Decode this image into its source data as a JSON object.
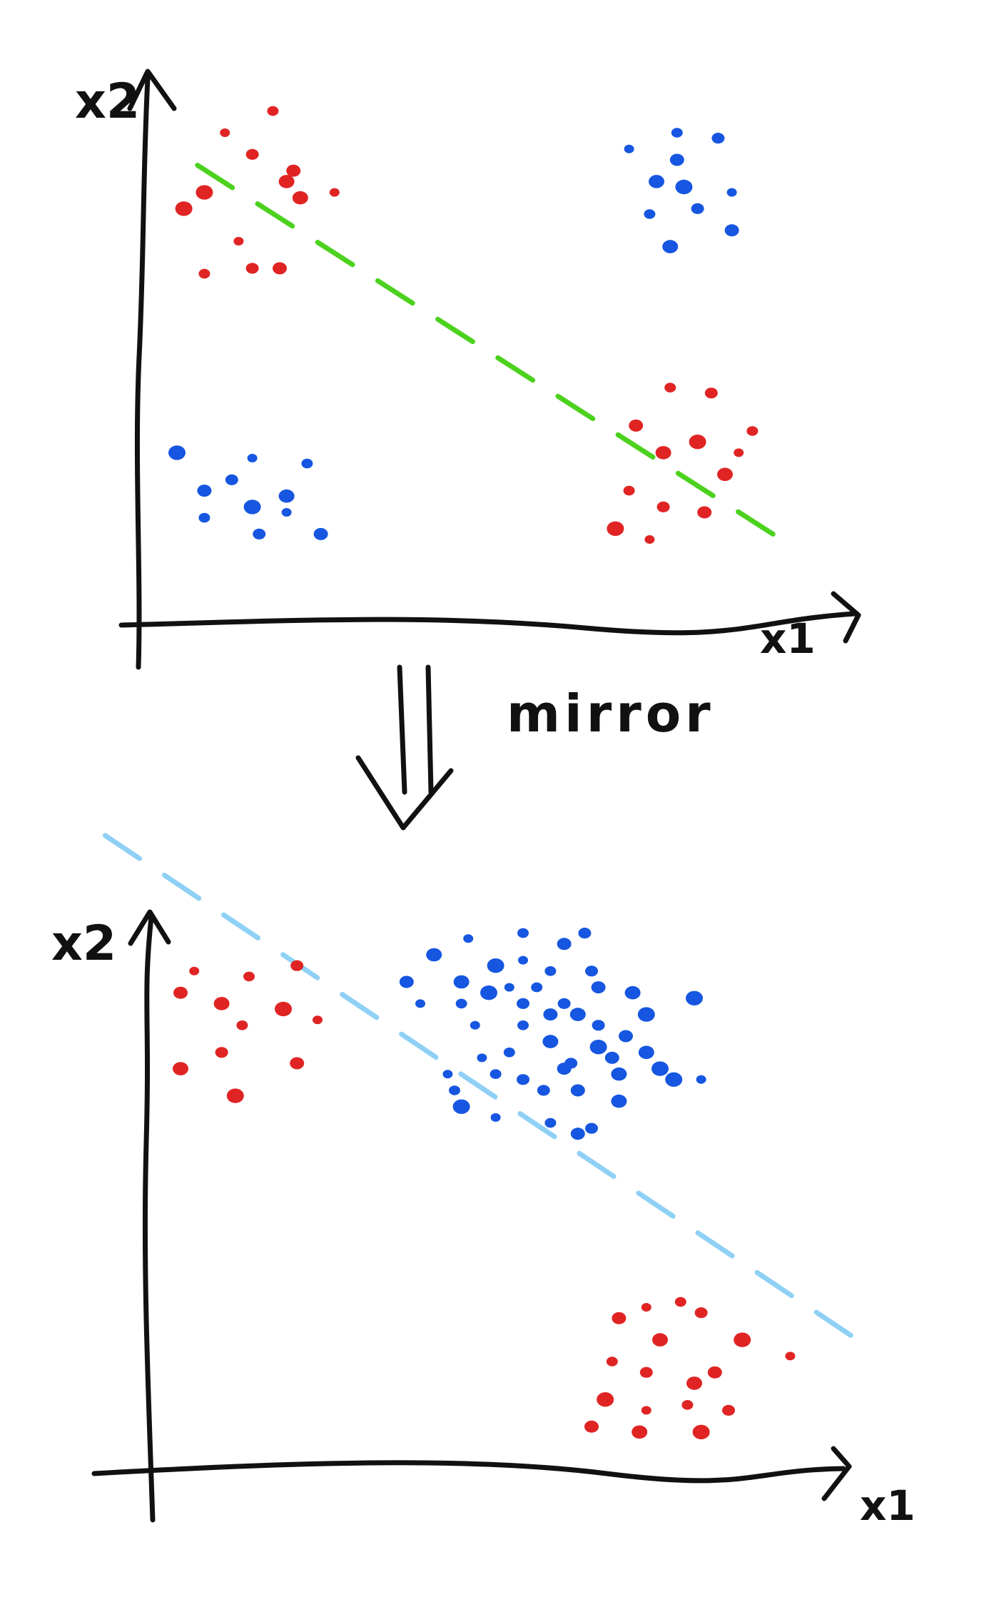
{
  "colors": {
    "ink": "#111111",
    "class_red": "#e02424",
    "class_blue": "#1656e0",
    "boundary_top": "#4cd21e",
    "boundary_bottom": "#8fd0f5"
  },
  "top_plot": {
    "x_label": "x1",
    "y_label": "x2",
    "boundary_style": "dashed",
    "red_points": [
      [
        1.2,
        9.0
      ],
      [
        1.9,
        9.4
      ],
      [
        1.6,
        8.6
      ],
      [
        2.2,
        8.3
      ],
      [
        2.3,
        7.8
      ],
      [
        0.6,
        7.6
      ],
      [
        1.4,
        7.0
      ],
      [
        0.9,
        6.4
      ],
      [
        1.6,
        6.5
      ],
      [
        2.0,
        6.5
      ],
      [
        2.1,
        8.1
      ],
      [
        0.9,
        7.9
      ],
      [
        2.8,
        7.9
      ],
      [
        7.7,
        4.3
      ],
      [
        8.3,
        4.2
      ],
      [
        7.2,
        3.6
      ],
      [
        7.6,
        3.1
      ],
      [
        8.1,
        3.3
      ],
      [
        8.7,
        3.1
      ],
      [
        7.1,
        2.4
      ],
      [
        7.6,
        2.1
      ],
      [
        8.2,
        2.0
      ],
      [
        8.5,
        2.7
      ],
      [
        6.9,
        1.7
      ],
      [
        7.4,
        1.5
      ],
      [
        8.9,
        3.5
      ]
    ],
    "blue_points": [
      [
        7.1,
        8.7
      ],
      [
        7.8,
        9.0
      ],
      [
        8.4,
        8.9
      ],
      [
        7.8,
        8.5
      ],
      [
        7.5,
        8.1
      ],
      [
        7.9,
        8.0
      ],
      [
        8.6,
        7.9
      ],
      [
        7.4,
        7.5
      ],
      [
        8.1,
        7.6
      ],
      [
        8.6,
        7.2
      ],
      [
        7.7,
        6.9
      ],
      [
        0.5,
        3.1
      ],
      [
        1.6,
        3.0
      ],
      [
        2.4,
        2.9
      ],
      [
        1.3,
        2.6
      ],
      [
        0.9,
        2.4
      ],
      [
        2.1,
        2.3
      ],
      [
        1.6,
        2.1
      ],
      [
        2.1,
        2.0
      ],
      [
        0.9,
        1.9
      ],
      [
        1.7,
        1.6
      ],
      [
        2.6,
        1.6
      ]
    ],
    "boundary": [
      [
        0.8,
        8.4
      ],
      [
        9.2,
        1.6
      ]
    ]
  },
  "arrow_label": "mirror",
  "bottom_plot": {
    "x_label": "x1",
    "y_label": "x2",
    "boundary_style": "dashed",
    "red_points": [
      [
        0.7,
        9.2
      ],
      [
        1.5,
        9.1
      ],
      [
        2.2,
        9.3
      ],
      [
        0.5,
        8.8
      ],
      [
        1.1,
        8.6
      ],
      [
        2.0,
        8.5
      ],
      [
        2.5,
        8.3
      ],
      [
        1.4,
        8.2
      ],
      [
        1.1,
        7.7
      ],
      [
        2.2,
        7.5
      ],
      [
        0.5,
        7.4
      ],
      [
        1.3,
        6.9
      ],
      [
        7.3,
        3.0
      ],
      [
        7.8,
        3.1
      ],
      [
        8.1,
        2.9
      ],
      [
        6.9,
        2.8
      ],
      [
        7.5,
        2.4
      ],
      [
        8.7,
        2.4
      ],
      [
        9.4,
        2.1
      ],
      [
        6.8,
        2.0
      ],
      [
        7.3,
        1.8
      ],
      [
        8.3,
        1.8
      ],
      [
        8.0,
        1.6
      ],
      [
        6.7,
        1.3
      ],
      [
        7.3,
        1.1
      ],
      [
        7.9,
        1.2
      ],
      [
        8.5,
        1.1
      ],
      [
        6.5,
        0.8
      ],
      [
        7.2,
        0.7
      ],
      [
        8.1,
        0.7
      ]
    ],
    "blue_points": [
      [
        4.7,
        9.8
      ],
      [
        5.5,
        9.9
      ],
      [
        6.4,
        9.9
      ],
      [
        6.1,
        9.7
      ],
      [
        4.2,
        9.5
      ],
      [
        5.1,
        9.3
      ],
      [
        5.5,
        9.4
      ],
      [
        5.9,
        9.2
      ],
      [
        6.5,
        9.2
      ],
      [
        3.8,
        9.0
      ],
      [
        4.6,
        9.0
      ],
      [
        5.0,
        8.8
      ],
      [
        5.3,
        8.9
      ],
      [
        5.7,
        8.9
      ],
      [
        6.1,
        8.6
      ],
      [
        6.6,
        8.9
      ],
      [
        7.1,
        8.8
      ],
      [
        8.0,
        8.7
      ],
      [
        4.0,
        8.6
      ],
      [
        4.6,
        8.6
      ],
      [
        5.5,
        8.6
      ],
      [
        5.9,
        8.4
      ],
      [
        6.3,
        8.4
      ],
      [
        7.3,
        8.4
      ],
      [
        4.8,
        8.2
      ],
      [
        5.5,
        8.2
      ],
      [
        6.6,
        8.2
      ],
      [
        7.0,
        8.0
      ],
      [
        5.9,
        7.9
      ],
      [
        6.6,
        7.8
      ],
      [
        4.9,
        7.6
      ],
      [
        5.3,
        7.7
      ],
      [
        6.2,
        7.5
      ],
      [
        6.8,
        7.6
      ],
      [
        7.3,
        7.7
      ],
      [
        7.5,
        7.4
      ],
      [
        4.4,
        7.3
      ],
      [
        5.1,
        7.3
      ],
      [
        5.5,
        7.2
      ],
      [
        6.1,
        7.4
      ],
      [
        6.9,
        7.3
      ],
      [
        7.7,
        7.2
      ],
      [
        8.1,
        7.2
      ],
      [
        4.5,
        7.0
      ],
      [
        5.8,
        7.0
      ],
      [
        6.3,
        7.0
      ],
      [
        6.9,
        6.8
      ],
      [
        4.6,
        6.7
      ],
      [
        5.1,
        6.5
      ],
      [
        5.9,
        6.4
      ],
      [
        6.5,
        6.3
      ],
      [
        6.3,
        6.2
      ]
    ],
    "boundary": [
      [
        -0.6,
        11.7
      ],
      [
        10.5,
        2.3
      ]
    ]
  }
}
